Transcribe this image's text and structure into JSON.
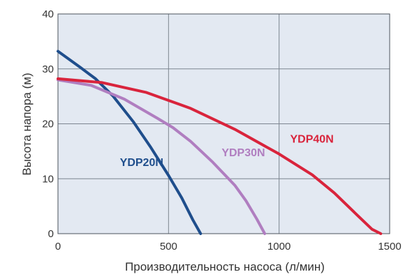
{
  "chart_data": {
    "type": "line",
    "title": "",
    "xlabel": "Производительность насоса (л/мин)",
    "ylabel": "Высота напора (м)",
    "xlim": [
      0,
      1500
    ],
    "ylim": [
      0,
      40
    ],
    "xticks": [
      "0",
      "500",
      "1000",
      "1500"
    ],
    "yticks": [
      "0",
      "10",
      "20",
      "30",
      "40"
    ],
    "grid": true,
    "plot_background": "#e3e9f2",
    "series": [
      {
        "name": "YDP20N",
        "color": "#1f4e8c",
        "x": [
          0,
          100,
          170,
          250,
          340,
          420,
          500,
          560,
          610,
          645
        ],
        "y": [
          33.2,
          30.3,
          28.2,
          25.0,
          20.4,
          15.7,
          10.6,
          6.5,
          2.5,
          0
        ]
      },
      {
        "name": "YDP30N",
        "color": "#b07ec0",
        "x": [
          0,
          150,
          300,
          450,
          520,
          600,
          700,
          800,
          850,
          900,
          935
        ],
        "y": [
          28.0,
          27.0,
          24.5,
          21.0,
          19.3,
          16.8,
          13.0,
          8.8,
          6.0,
          2.6,
          0
        ]
      },
      {
        "name": "YDP40N",
        "color": "#d9243c",
        "x": [
          0,
          200,
          400,
          600,
          800,
          1000,
          1150,
          1250,
          1350,
          1420,
          1460
        ],
        "y": [
          28.2,
          27.5,
          25.7,
          22.8,
          19.0,
          14.5,
          10.7,
          7.4,
          3.5,
          0.8,
          0
        ]
      }
    ],
    "annotations": [
      {
        "text": "YDP20N",
        "series": "YDP20N",
        "x": 280,
        "y": 12.3
      },
      {
        "text": "YDP30N",
        "series": "YDP30N",
        "x": 740,
        "y": 14.1
      },
      {
        "text": "YDP40N",
        "series": "YDP40N",
        "x": 1050,
        "y": 16.6
      }
    ]
  }
}
